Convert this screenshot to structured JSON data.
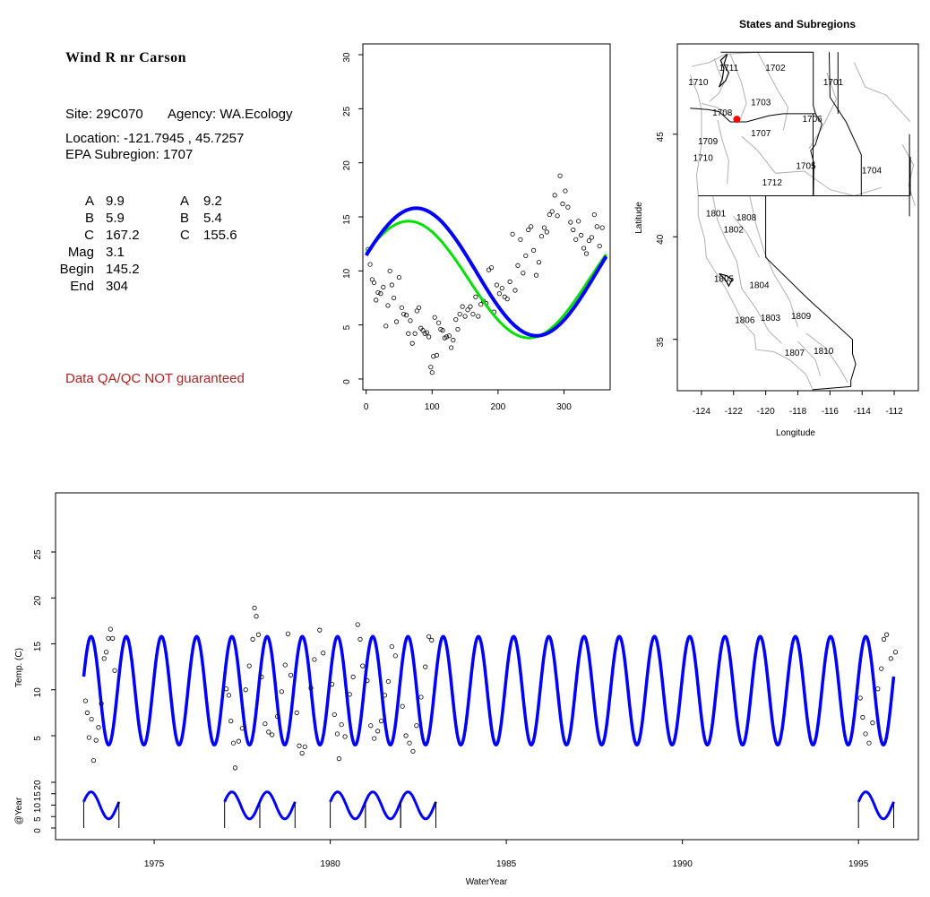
{
  "site_info": {
    "name": "Wind R nr Carson",
    "site_line": "Site: 29C070",
    "agency_line": "Agency: WA.Ecology",
    "location_line": "Location: -121.7945 , 45.7257",
    "subregion_line": "EPA Subregion: 1707",
    "qa_note": "Data QA/QC NOT guaranteed"
  },
  "parameters": {
    "col1": [
      {
        "label": "A",
        "value": "9.9"
      },
      {
        "label": "B",
        "value": "5.9"
      },
      {
        "label": "C",
        "value": "167.2"
      },
      {
        "label": "Mag",
        "value": "3.1"
      },
      {
        "label": "Begin",
        "value": "145.2"
      },
      {
        "label": "End",
        "value": "304"
      }
    ],
    "col2": [
      {
        "label": "A",
        "value": "9.2"
      },
      {
        "label": "B",
        "value": "5.4"
      },
      {
        "label": "C",
        "value": "155.6"
      }
    ]
  },
  "colors": {
    "fit_blue": "#0000ff",
    "fit_green": "#00e000",
    "site_marker": "#ff0000",
    "boundary_gray": "#b0b0b0",
    "qa_text": "#b22222"
  },
  "chart_data": [
    {
      "type": "scatter",
      "id": "seasonal",
      "title": "",
      "xlabel": "",
      "ylabel": "",
      "xlim": [
        -5,
        370
      ],
      "ylim": [
        -1,
        31
      ],
      "x_ticks": [
        "0",
        "100",
        "200",
        "300"
      ],
      "y_ticks": [
        "0",
        "5",
        "10",
        "15",
        "20",
        "25",
        "30"
      ],
      "observations": [
        [
          3,
          12.0
        ],
        [
          6,
          10.6
        ],
        [
          9,
          9.2
        ],
        [
          12,
          8.9
        ],
        [
          15,
          7.3
        ],
        [
          18,
          8.0
        ],
        [
          22,
          7.9
        ],
        [
          26,
          8.5
        ],
        [
          30,
          4.9
        ],
        [
          33,
          6.8
        ],
        [
          36,
          10.0
        ],
        [
          39,
          8.7
        ],
        [
          42,
          7.5
        ],
        [
          46,
          5.3
        ],
        [
          50,
          9.4
        ],
        [
          54,
          6.6
        ],
        [
          57,
          6.0
        ],
        [
          61,
          5.9
        ],
        [
          64,
          4.2
        ],
        [
          67,
          5.4
        ],
        [
          70,
          3.3
        ],
        [
          74,
          4.2
        ],
        [
          77,
          6.3
        ],
        [
          80,
          6.6
        ],
        [
          83,
          4.7
        ],
        [
          86,
          4.5
        ],
        [
          89,
          4.2
        ],
        [
          92,
          4.3
        ],
        [
          95,
          3.9
        ],
        [
          98,
          1.1
        ],
        [
          100,
          0.6
        ],
        [
          102,
          2.1
        ],
        [
          104,
          5.7
        ],
        [
          107,
          2.2
        ],
        [
          110,
          5.2
        ],
        [
          113,
          4.6
        ],
        [
          116,
          4.5
        ],
        [
          119,
          3.8
        ],
        [
          122,
          3.9
        ],
        [
          126,
          4.0
        ],
        [
          129,
          2.9
        ],
        [
          132,
          3.6
        ],
        [
          136,
          5.5
        ],
        [
          139,
          4.6
        ],
        [
          142,
          6.0
        ],
        [
          146,
          6.7
        ],
        [
          150,
          5.8
        ],
        [
          154,
          6.4
        ],
        [
          158,
          6.7
        ],
        [
          162,
          6.0
        ],
        [
          166,
          7.6
        ],
        [
          170,
          5.8
        ],
        [
          174,
          6.9
        ],
        [
          178,
          7.2
        ],
        [
          182,
          7.0
        ],
        [
          186,
          10.1
        ],
        [
          190,
          10.3
        ],
        [
          194,
          6.2
        ],
        [
          198,
          8.7
        ],
        [
          202,
          7.9
        ],
        [
          206,
          8.4
        ],
        [
          210,
          7.6
        ],
        [
          214,
          7.4
        ],
        [
          218,
          9.0
        ],
        [
          222,
          13.4
        ],
        [
          226,
          8.2
        ],
        [
          230,
          10.5
        ],
        [
          234,
          12.9
        ],
        [
          238,
          9.8
        ],
        [
          242,
          11.4
        ],
        [
          246,
          13.8
        ],
        [
          250,
          14.1
        ],
        [
          254,
          11.9
        ],
        [
          258,
          9.6
        ],
        [
          262,
          10.8
        ],
        [
          266,
          13.2
        ],
        [
          270,
          14.0
        ],
        [
          274,
          13.6
        ],
        [
          278,
          15.2
        ],
        [
          282,
          15.5
        ],
        [
          286,
          17.0
        ],
        [
          290,
          15.1
        ],
        [
          294,
          18.8
        ],
        [
          298,
          16.2
        ],
        [
          302,
          17.4
        ],
        [
          306,
          15.9
        ],
        [
          310,
          14.5
        ],
        [
          314,
          13.8
        ],
        [
          318,
          12.9
        ],
        [
          322,
          14.6
        ],
        [
          326,
          13.3
        ],
        [
          330,
          12.1
        ],
        [
          334,
          11.6
        ],
        [
          338,
          12.8
        ],
        [
          342,
          13.1
        ],
        [
          346,
          15.2
        ],
        [
          350,
          14.1
        ],
        [
          354,
          12.3
        ],
        [
          358,
          14.0
        ],
        [
          362,
          11.2
        ]
      ],
      "series": [
        {
          "name": "",
          "color": "#00e000",
          "A": 9.2,
          "B": 5.4,
          "C": 155.6
        },
        {
          "name": "",
          "color": "#0000ff",
          "A": 9.9,
          "B": 5.9,
          "C": 167.2
        }
      ]
    },
    {
      "type": "map",
      "id": "states-subregions",
      "title": "States and Subregions",
      "xlabel": "Longitude",
      "ylabel": "Latitude",
      "xlim": [
        -125.5,
        -110.5
      ],
      "ylim": [
        32.5,
        49.4
      ],
      "x_ticks": [
        "-124",
        "-122",
        "-120",
        "-118",
        "-116",
        "-114",
        "-112"
      ],
      "y_ticks": [
        "35",
        "40",
        "45"
      ],
      "site": [
        -121.7945,
        45.7257
      ],
      "region_labels": [
        {
          "text": "1711",
          "lon": -122.3,
          "lat": 48.1
        },
        {
          "text": "1710",
          "lon": -124.2,
          "lat": 47.4
        },
        {
          "text": "1702",
          "lon": -119.4,
          "lat": 48.1
        },
        {
          "text": "1701",
          "lon": -115.8,
          "lat": 47.4
        },
        {
          "text": "1703",
          "lon": -120.3,
          "lat": 46.4
        },
        {
          "text": "1708",
          "lon": -122.7,
          "lat": 45.9
        },
        {
          "text": "1706",
          "lon": -117.1,
          "lat": 45.6
        },
        {
          "text": "1707",
          "lon": -120.3,
          "lat": 44.9
        },
        {
          "text": "1709",
          "lon": -123.6,
          "lat": 44.5
        },
        {
          "text": "1710",
          "lon": -123.9,
          "lat": 43.7
        },
        {
          "text": "1705",
          "lon": -117.5,
          "lat": 43.3
        },
        {
          "text": "1704",
          "lon": -113.4,
          "lat": 43.1
        },
        {
          "text": "1712",
          "lon": -119.6,
          "lat": 42.5
        },
        {
          "text": "1801",
          "lon": -123.1,
          "lat": 41.0
        },
        {
          "text": "1808",
          "lon": -121.2,
          "lat": 40.8
        },
        {
          "text": "1802",
          "lon": -122.0,
          "lat": 40.2
        },
        {
          "text": "1805",
          "lon": -122.6,
          "lat": 37.8
        },
        {
          "text": "1804",
          "lon": -120.4,
          "lat": 37.5
        },
        {
          "text": "1806",
          "lon": -121.3,
          "lat": 35.8
        },
        {
          "text": "1803",
          "lon": -119.7,
          "lat": 35.9
        },
        {
          "text": "1809",
          "lon": -117.8,
          "lat": 36.0
        },
        {
          "text": "1807",
          "lon": -118.2,
          "lat": 34.2
        },
        {
          "text": "1810",
          "lon": -116.4,
          "lat": 34.3
        }
      ]
    },
    {
      "type": "line",
      "id": "timeseries",
      "title": "",
      "xlabel": "WaterYear",
      "ylabel": "Temp. (C)",
      "xlim": [
        1972.2,
        1996.7
      ],
      "ylim": [
        -1,
        30
      ],
      "x_ticks": [
        "1975",
        "1980",
        "1985",
        "1990",
        "1995"
      ],
      "y_ticks": [
        "5",
        "10",
        "15",
        "20",
        "25"
      ],
      "fit_start": 1973.0,
      "fit_end": 1996.0,
      "obs_years": [
        1973,
        1977,
        1978,
        1980,
        1981,
        1982,
        1995
      ],
      "observations": [
        [
          1973.05,
          8.8
        ],
        [
          1973.1,
          7.5
        ],
        [
          1973.15,
          4.8
        ],
        [
          1973.22,
          6.8
        ],
        [
          1973.28,
          2.3
        ],
        [
          1973.35,
          4.5
        ],
        [
          1973.42,
          5.9
        ],
        [
          1973.5,
          8.5
        ],
        [
          1973.58,
          13.4
        ],
        [
          1973.64,
          14.1
        ],
        [
          1973.7,
          15.6
        ],
        [
          1973.76,
          16.6
        ],
        [
          1973.82,
          15.6
        ],
        [
          1973.88,
          12.1
        ],
        [
          1977.05,
          10.1
        ],
        [
          1977.12,
          9.4
        ],
        [
          1977.18,
          6.6
        ],
        [
          1977.25,
          4.2
        ],
        [
          1977.3,
          1.5
        ],
        [
          1977.4,
          4.4
        ],
        [
          1977.5,
          5.8
        ],
        [
          1977.6,
          10.0
        ],
        [
          1977.7,
          12.6
        ],
        [
          1977.8,
          15.5
        ],
        [
          1977.85,
          18.9
        ],
        [
          1977.9,
          18.0
        ],
        [
          1977.96,
          16.0
        ],
        [
          1978.05,
          11.4
        ],
        [
          1978.15,
          6.3
        ],
        [
          1978.25,
          5.4
        ],
        [
          1978.35,
          5.1
        ],
        [
          1978.5,
          7.1
        ],
        [
          1978.62,
          9.8
        ],
        [
          1978.72,
          12.7
        ],
        [
          1978.8,
          16.1
        ],
        [
          1978.88,
          11.6
        ],
        [
          1979.05,
          7.5
        ],
        [
          1979.12,
          3.9
        ],
        [
          1979.2,
          3.1
        ],
        [
          1979.28,
          3.8
        ],
        [
          1979.45,
          10.2
        ],
        [
          1979.55,
          13.3
        ],
        [
          1979.7,
          16.5
        ],
        [
          1979.8,
          14.0
        ],
        [
          1980.05,
          10.6
        ],
        [
          1980.12,
          7.3
        ],
        [
          1980.2,
          5.2
        ],
        [
          1980.25,
          2.5
        ],
        [
          1980.32,
          6.2
        ],
        [
          1980.42,
          4.9
        ],
        [
          1980.55,
          9.5
        ],
        [
          1980.65,
          11.4
        ],
        [
          1980.78,
          17.1
        ],
        [
          1980.85,
          15.5
        ],
        [
          1980.92,
          12.6
        ],
        [
          1981.05,
          11.0
        ],
        [
          1981.15,
          6.1
        ],
        [
          1981.25,
          4.7
        ],
        [
          1981.35,
          5.5
        ],
        [
          1981.45,
          6.6
        ],
        [
          1981.55,
          9.4
        ],
        [
          1981.65,
          10.9
        ],
        [
          1981.75,
          14.7
        ],
        [
          1981.85,
          13.7
        ],
        [
          1982.05,
          8.2
        ],
        [
          1982.15,
          5.0
        ],
        [
          1982.25,
          4.2
        ],
        [
          1982.35,
          3.3
        ],
        [
          1982.45,
          6.1
        ],
        [
          1982.58,
          9.2
        ],
        [
          1982.7,
          12.5
        ],
        [
          1982.8,
          15.8
        ],
        [
          1982.88,
          15.4
        ],
        [
          1995.05,
          9.1
        ],
        [
          1995.12,
          7.0
        ],
        [
          1995.2,
          5.2
        ],
        [
          1995.3,
          4.2
        ],
        [
          1995.4,
          6.4
        ],
        [
          1995.55,
          10.1
        ],
        [
          1995.65,
          12.3
        ],
        [
          1995.72,
          15.5
        ],
        [
          1995.8,
          16.0
        ],
        [
          1995.92,
          13.4
        ],
        [
          1996.05,
          14.1
        ]
      ],
      "series": [
        {
          "name": "",
          "color": "#0000ff",
          "A": 9.9,
          "B": 5.9,
          "C": 167.2
        }
      ]
    },
    {
      "type": "line",
      "id": "at-year",
      "title": "",
      "xlabel": "",
      "ylabel": "@Year",
      "xlim": [
        1972.2,
        1996.7
      ],
      "ylim": [
        -1,
        24
      ],
      "y_ticks": [
        "0",
        "5",
        "10",
        "15",
        "20"
      ],
      "years": [
        1973,
        1977,
        1978,
        1980,
        1981,
        1982,
        1995
      ]
    }
  ]
}
